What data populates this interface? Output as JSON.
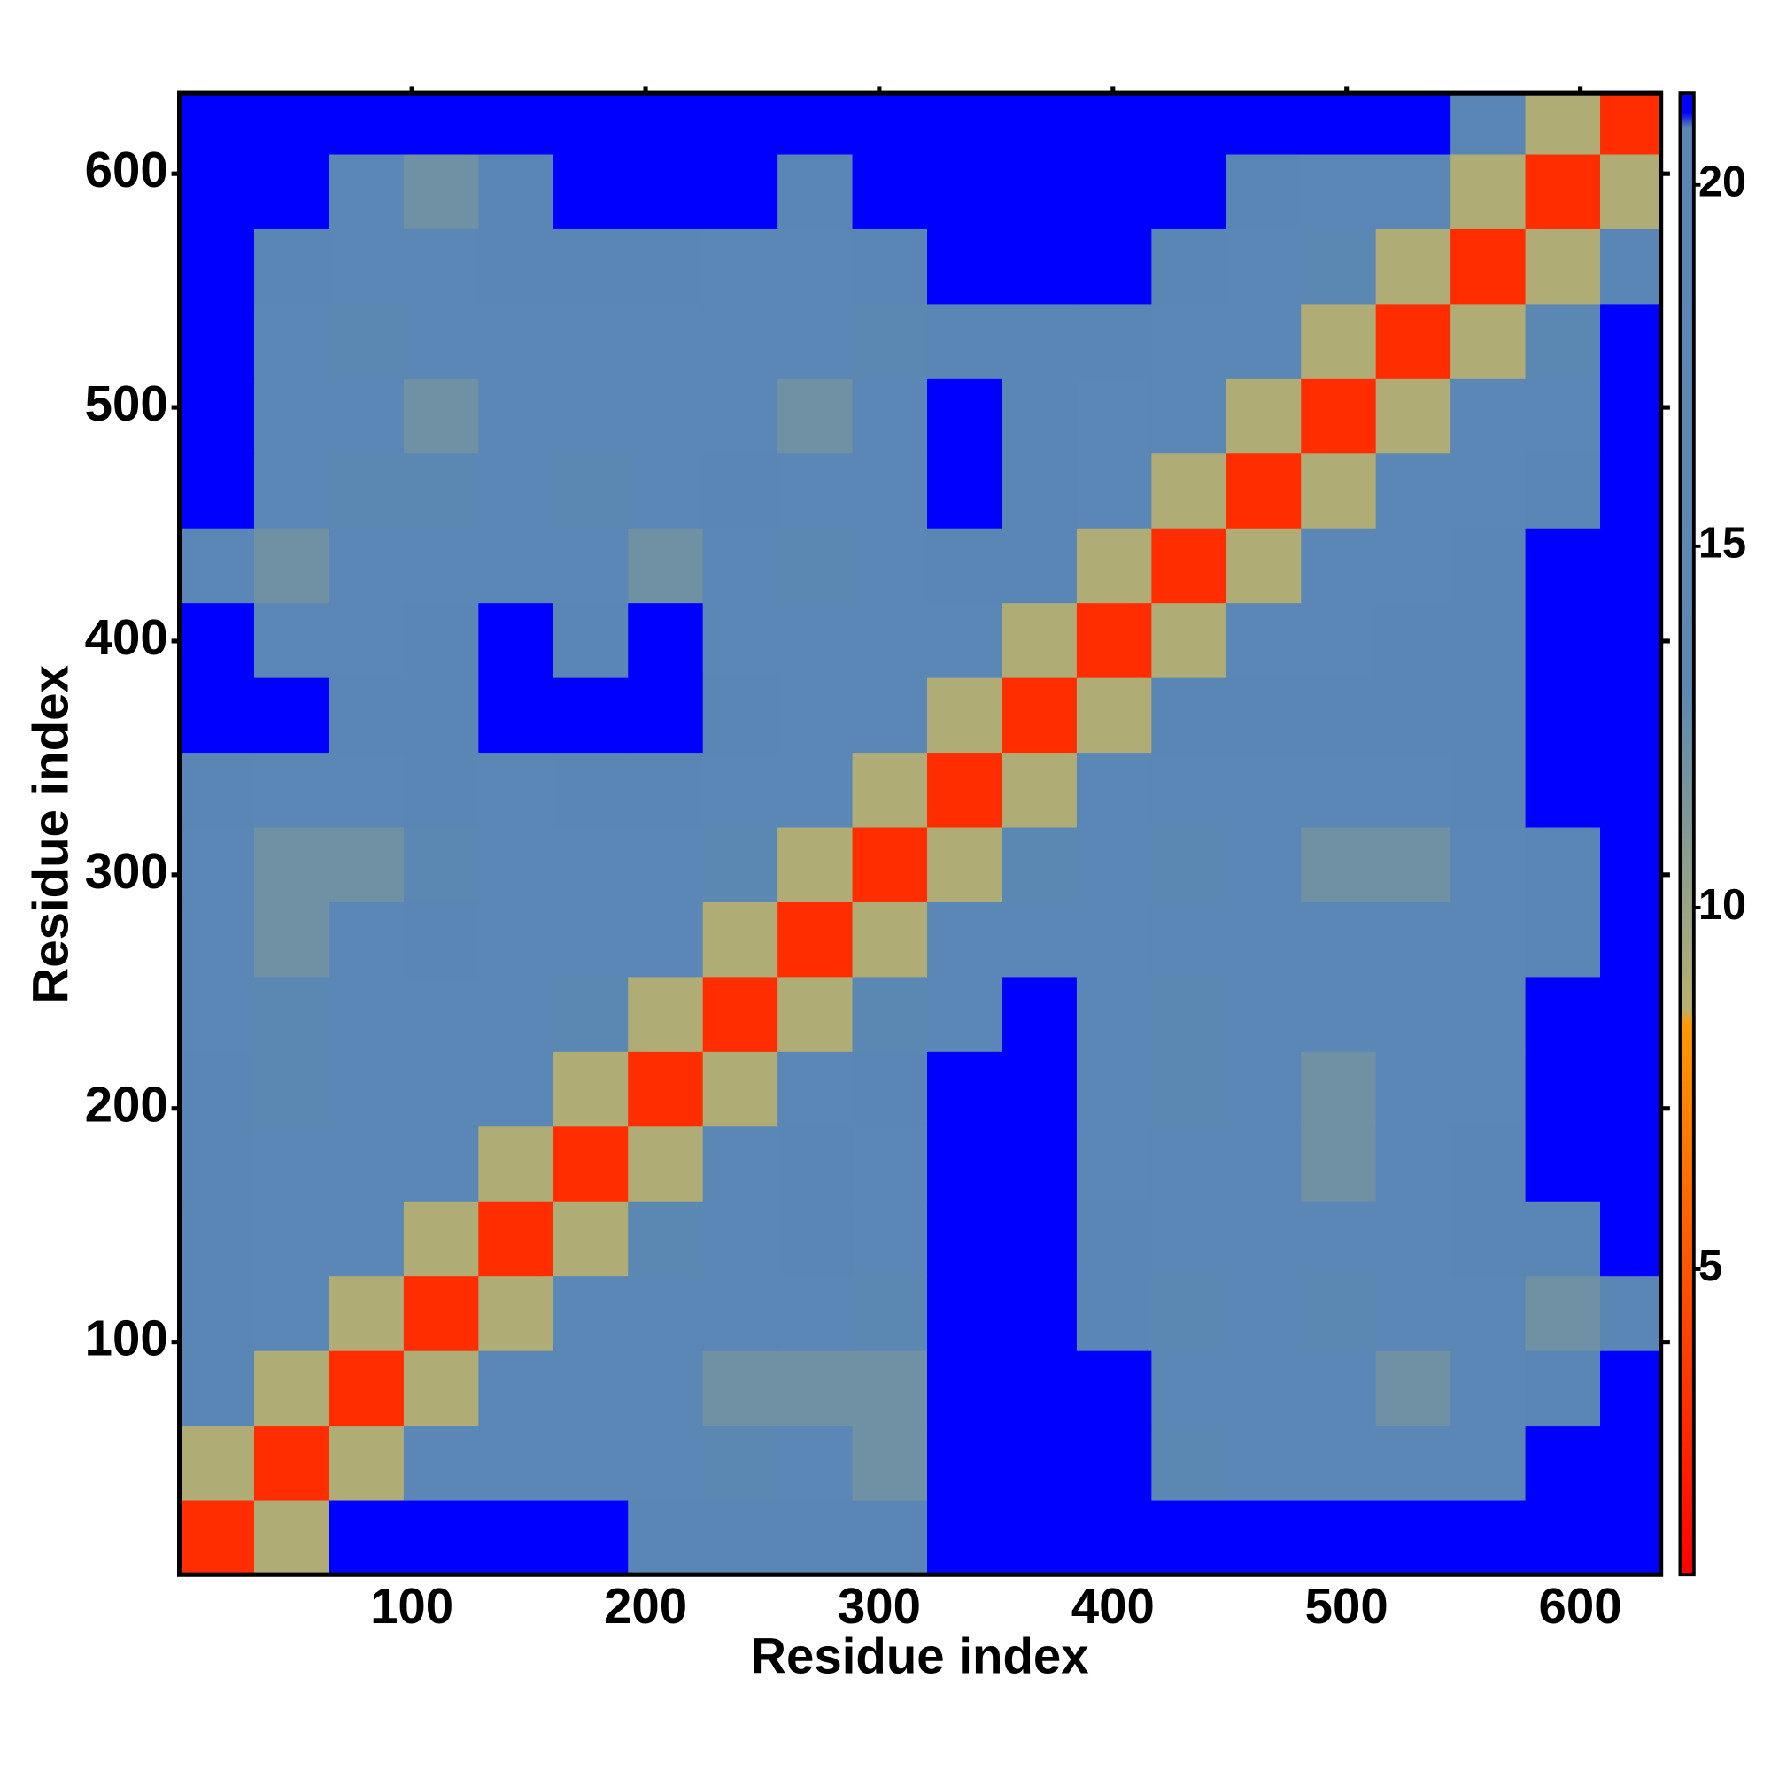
{
  "chart_data": {
    "type": "heatmap",
    "xlabel": "Residue index",
    "ylabel": "Residue index",
    "xbins": [
      0.5,
      32.5,
      64.5,
      96.5,
      128.5,
      160.5,
      192.5,
      224.5,
      256.5,
      288.5,
      320.5,
      352.5,
      384.5,
      416.5,
      448.5,
      480.5,
      512.5,
      544.5,
      576.5,
      608.5,
      634.5
    ],
    "ybins": [
      0.5,
      32.5,
      64.5,
      96.5,
      128.5,
      160.5,
      192.5,
      224.5,
      256.5,
      288.5,
      320.5,
      352.5,
      384.5,
      416.5,
      448.5,
      480.5,
      512.5,
      544.5,
      576.5,
      608.5,
      634.5
    ],
    "z": [
      [
        3,
        9,
        21,
        21,
        21,
        21,
        19,
        19,
        19,
        19,
        21,
        21,
        21,
        21,
        21,
        21,
        21,
        21,
        21,
        21
      ],
      [
        9,
        3,
        9,
        17,
        17,
        17,
        17,
        14,
        17,
        12,
        21,
        21,
        21,
        14,
        17,
        17,
        17,
        17,
        21,
        21
      ],
      [
        19,
        9,
        3,
        9,
        17,
        17,
        17,
        12,
        12,
        12,
        21,
        21,
        21,
        17,
        17,
        17,
        12,
        17,
        19,
        21
      ],
      [
        19,
        17,
        9,
        3,
        9,
        17,
        17,
        17,
        17,
        14,
        21,
        21,
        19,
        14,
        17,
        14,
        17,
        17,
        12,
        19
      ],
      [
        19,
        17,
        17,
        9,
        3,
        9,
        14,
        17,
        19,
        17,
        21,
        21,
        19,
        17,
        17,
        17,
        17,
        19,
        19,
        21
      ],
      [
        19,
        17,
        17,
        17,
        9,
        3,
        9,
        17,
        19,
        17,
        21,
        21,
        17,
        17,
        17,
        12,
        17,
        19,
        21,
        21
      ],
      [
        19,
        14,
        17,
        17,
        17,
        9,
        3,
        9,
        17,
        19,
        21,
        21,
        17,
        14,
        17,
        12,
        17,
        17,
        21,
        21
      ],
      [
        17,
        14,
        17,
        17,
        17,
        14,
        9,
        3,
        9,
        14,
        17,
        21,
        17,
        14,
        17,
        17,
        17,
        17,
        21,
        21
      ],
      [
        17,
        12,
        17,
        19,
        17,
        17,
        17,
        9,
        3,
        9,
        17,
        17,
        17,
        17,
        17,
        17,
        17,
        17,
        19,
        21
      ],
      [
        17,
        12,
        12,
        14,
        17,
        17,
        17,
        14,
        9,
        3,
        9,
        14,
        17,
        14,
        17,
        12,
        12,
        17,
        19,
        21
      ],
      [
        19,
        17,
        17,
        19,
        17,
        19,
        19,
        17,
        17,
        9,
        3,
        9,
        17,
        17,
        17,
        17,
        17,
        19,
        21,
        21
      ],
      [
        21,
        21,
        19,
        19,
        21,
        21,
        21,
        19,
        17,
        17,
        9,
        3,
        9,
        19,
        19,
        19,
        19,
        19,
        21,
        21
      ],
      [
        21,
        17,
        17,
        19,
        21,
        19,
        21,
        17,
        17,
        17,
        17,
        9,
        3,
        9,
        17,
        17,
        19,
        19,
        21,
        21
      ],
      [
        17,
        12,
        17,
        17,
        17,
        17,
        12,
        17,
        14,
        17,
        19,
        19,
        9,
        3,
        9,
        17,
        17,
        19,
        21,
        21
      ],
      [
        21,
        17,
        14,
        14,
        17,
        14,
        17,
        19,
        17,
        17,
        21,
        19,
        17,
        9,
        3,
        9,
        17,
        17,
        19,
        21
      ],
      [
        21,
        17,
        17,
        12,
        17,
        17,
        17,
        17,
        12,
        17,
        21,
        19,
        17,
        17,
        9,
        3,
        9,
        17,
        17,
        21
      ],
      [
        21,
        17,
        14,
        17,
        17,
        17,
        17,
        17,
        17,
        14,
        19,
        19,
        19,
        17,
        17,
        9,
        3,
        9,
        14,
        21
      ],
      [
        21,
        19,
        17,
        17,
        19,
        19,
        19,
        17,
        17,
        19,
        21,
        21,
        21,
        19,
        17,
        14,
        9,
        3,
        9,
        19
      ],
      [
        21,
        21,
        17,
        12,
        19,
        21,
        21,
        21,
        19,
        21,
        21,
        21,
        21,
        21,
        19,
        17,
        17,
        9,
        3,
        9
      ],
      [
        21,
        21,
        21,
        21,
        21,
        21,
        21,
        21,
        21,
        21,
        21,
        21,
        21,
        21,
        21,
        21,
        21,
        19,
        9,
        3
      ]
    ],
    "xlim": [
      0.5,
      634.5
    ],
    "ylim": [
      0.5,
      634.5
    ],
    "xticks": [
      100,
      200,
      300,
      400,
      500,
      600
    ],
    "yticks": [
      100,
      200,
      300,
      400,
      500,
      600
    ],
    "colorbar": {
      "clim": [
        0.77,
        21.27
      ],
      "ticks": [
        5,
        10,
        15,
        20
      ],
      "stops": [
        {
          "value": 0.77,
          "color": "#ff0000"
        },
        {
          "value": 8.4,
          "color": "#ff9900"
        },
        {
          "value": 8.6,
          "color": "#b8b070"
        },
        {
          "value": 10.5,
          "color": "#8e9f8c"
        },
        {
          "value": 13,
          "color": "#5b88b3"
        },
        {
          "value": 20.8,
          "color": "#5a86b6"
        },
        {
          "value": 21,
          "color": "#0000ff"
        },
        {
          "value": 21.27,
          "color": "#0000ff"
        }
      ]
    }
  }
}
